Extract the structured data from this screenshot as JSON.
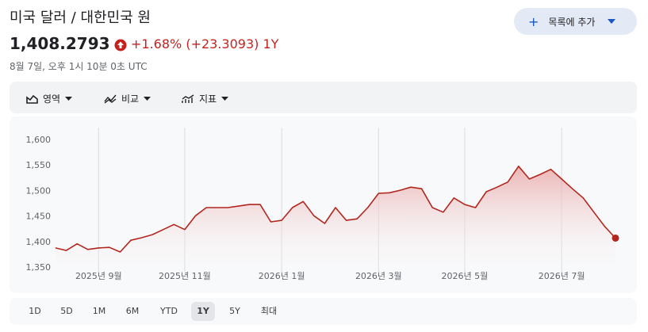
{
  "header": {
    "title": "미국 달러 / 대한민국 원",
    "button": "목록에 추가"
  },
  "quote": {
    "price": "1,408.2793",
    "change": "+1.68% (+23.3093) 1Y",
    "timestamp": "8월 7일, 오후 1시 10분 0초 UTC"
  },
  "toolbar": [
    "영역",
    "비교",
    "지표"
  ],
  "ranges": [
    "1D",
    "5D",
    "1M",
    "6M",
    "YTD",
    "1Y",
    "5Y",
    "최대"
  ],
  "selected_range": "1Y",
  "chart_data": {
    "type": "area",
    "categories": [
      null,
      null,
      null,
      null,
      "2025년 9월",
      null,
      null,
      null,
      null,
      null,
      null,
      null,
      "2025년 11월",
      null,
      null,
      null,
      null,
      null,
      null,
      null,
      null,
      "2026년 1월",
      null,
      null,
      null,
      null,
      null,
      null,
      null,
      null,
      "2026년 3월",
      null,
      null,
      null,
      null,
      null,
      null,
      null,
      "2026년 5월",
      null,
      null,
      null,
      null,
      null,
      null,
      null,
      null,
      "2026년 7월",
      null,
      null,
      null,
      null,
      null
    ],
    "series": [
      {
        "color": "#b3261e",
        "values": [
          1389,
          1384,
          1397,
          1386,
          1389,
          1390,
          1381,
          1404,
          1409,
          1415,
          1425,
          1435,
          1425,
          1452,
          1468,
          1468,
          1468,
          1471,
          1474,
          1474,
          1440,
          1443,
          1468,
          1480,
          1452,
          1437,
          1468,
          1443,
          1446,
          1468,
          1496,
          1497,
          1502,
          1508,
          1505,
          1468,
          1459,
          1487,
          1474,
          1468,
          1499,
          1508,
          1518,
          1549,
          1524,
          1533,
          1543,
          1524,
          1505,
          1487,
          1459,
          1431,
          1408.28
        ]
      }
    ],
    "ylim": [
      1350,
      1600
    ],
    "yticks": [
      {
        "value": 1350,
        "label": "1,350"
      },
      {
        "value": 1400,
        "label": "1,400"
      },
      {
        "value": 1450,
        "label": "1,450"
      },
      {
        "value": 1500,
        "label": "1,500"
      },
      {
        "value": 1550,
        "label": "1,550"
      },
      {
        "value": 1600,
        "label": "1,600"
      }
    ],
    "grid": true
  }
}
